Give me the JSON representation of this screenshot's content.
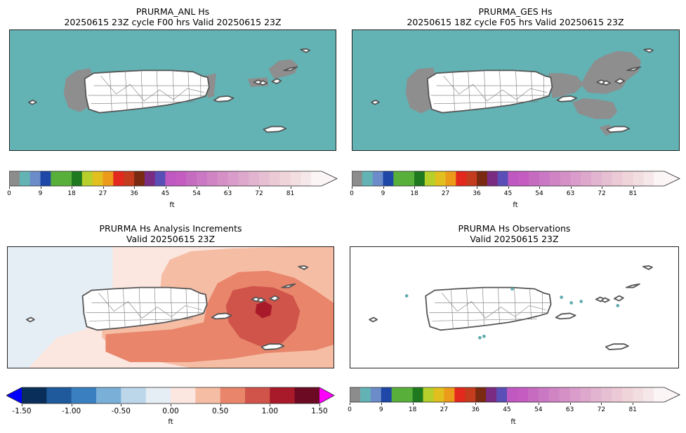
{
  "colors": {
    "ocean": "#63b2b4",
    "land": "#ffffff",
    "landEdge": "#555555",
    "shadow": "#8e8e8e",
    "hs_palette": [
      "#8c8c8c",
      "#63b2b4",
      "#6b8cc8",
      "#1e47a8",
      "#58b03a",
      "#58b03a",
      "#1f7a1f",
      "#b7cf2a",
      "#e0bf1e",
      "#ec9a1a",
      "#e3281e",
      "#c43c1e",
      "#7a2a10",
      "#7a2b82",
      "#5a4fb6",
      "#c058c2",
      "#c45cc2",
      "#c66cc0",
      "#ca78c4",
      "#d084c4",
      "#d590c6",
      "#da9cca",
      "#dea8cc",
      "#e2b4d0",
      "#e6c0d2",
      "#ebcad6",
      "#efd4da",
      "#f2dde0",
      "#f6e8ea",
      "#fbf5f6"
    ],
    "inc_palette": [
      "#0a2e5a",
      "#1f5a9c",
      "#3a80c0",
      "#7ab0d8",
      "#bcd6ea",
      "#e5edf5",
      "#fbe7e0",
      "#f6bda5",
      "#e8856a",
      "#d0544a",
      "#a81a2a",
      "#6b0a22"
    ],
    "inc_under": "#0000ff",
    "inc_over": "#ff00ff"
  },
  "panels": [
    {
      "title": "PRURMA_ANL Hs",
      "subtitle": "20250615 23Z cycle F00 hrs Valid 20250615 23Z"
    },
    {
      "title": "PRURMA_GES Hs",
      "subtitle": "20250615 18Z cycle F05 hrs Valid 20250615 23Z"
    },
    {
      "title": "PRURMA Hs Analysis Increments",
      "subtitle": "Valid 20250615 23Z"
    },
    {
      "title": "PRURMA Hs Observations",
      "subtitle": "Valid 20250615 23Z"
    }
  ],
  "colorbars": {
    "hs_ticks": [
      "0",
      "9",
      "18",
      "27",
      "36",
      "45",
      "54",
      "63",
      "72",
      "81"
    ],
    "inc_ticks": [
      "-1.50",
      "-1.00",
      "-0.50",
      "0.00",
      "0.50",
      "1.00",
      "1.50"
    ],
    "unit": "ft"
  },
  "chart_data": [
    {
      "type": "heatmap",
      "title": "PRURMA_ANL Hs",
      "subtitle": "20250615 23Z cycle F00 hrs Valid 20250615 23Z",
      "colorbar_range": [
        0,
        90
      ],
      "colorbar_ticks": [
        0,
        9,
        18,
        27,
        36,
        45,
        54,
        63,
        72,
        81
      ],
      "unit": "ft",
      "extend": "max"
    },
    {
      "type": "heatmap",
      "title": "PRURMA_GES Hs",
      "subtitle": "20250615 18Z cycle F05 hrs Valid 20250615 23Z",
      "colorbar_range": [
        0,
        90
      ],
      "colorbar_ticks": [
        0,
        9,
        18,
        27,
        36,
        45,
        54,
        63,
        72,
        81
      ],
      "unit": "ft",
      "extend": "max"
    },
    {
      "type": "heatmap",
      "title": "PRURMA Hs Analysis Increments",
      "subtitle": "Valid 20250615 23Z",
      "colorbar_range": [
        -1.5,
        1.5
      ],
      "colorbar_ticks": [
        -1.5,
        -1.0,
        -0.5,
        0.0,
        0.5,
        1.0,
        1.5
      ],
      "unit": "ft",
      "extend": "both"
    },
    {
      "type": "scatter",
      "title": "PRURMA Hs Observations",
      "subtitle": "Valid 20250615 23Z",
      "colorbar_range": [
        0,
        90
      ],
      "colorbar_ticks": [
        0,
        9,
        18,
        27,
        36,
        45,
        54,
        63,
        72,
        81
      ],
      "unit": "ft",
      "extend": "max"
    }
  ]
}
